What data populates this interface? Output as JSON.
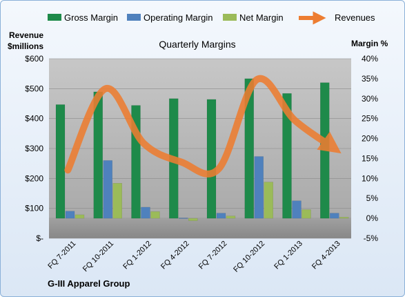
{
  "chart_data": {
    "type": "bar",
    "title": "Quarterly Margins",
    "categories": [
      "FQ 7-2011",
      "FQ 10-2011",
      "FQ 1-2012",
      "FQ 4-2012",
      "FQ 7-2012",
      "FQ 10-2012",
      "FQ 1-2013",
      "FQ 4-2013"
    ],
    "series": [
      {
        "name": "Gross Margin",
        "type": "bar",
        "axis": "right",
        "color": "#1e8a4a",
        "values": [
          28.5,
          31.7,
          28.3,
          30.0,
          29.8,
          35.0,
          31.3,
          34.0
        ]
      },
      {
        "name": "Operating Margin",
        "type": "bar",
        "axis": "right",
        "color": "#4f81bd",
        "values": [
          1.8,
          14.5,
          2.8,
          0.1,
          1.3,
          15.5,
          4.4,
          1.3
        ]
      },
      {
        "name": "Net Margin",
        "type": "bar",
        "axis": "right",
        "color": "#9bbb59",
        "values": [
          0.9,
          8.8,
          1.7,
          -0.6,
          0.6,
          9.1,
          2.2,
          0.3
        ]
      },
      {
        "name": "Revenues",
        "type": "line",
        "axis": "left",
        "color": "#ed7d31",
        "values": [
          228,
          500,
          318,
          255,
          233,
          530,
          395,
          305
        ]
      }
    ],
    "left_axis": {
      "label_line1": "Revenue",
      "label_line2": "$millions",
      "min": 0,
      "max": 600,
      "ticks": [
        "$-",
        "$100",
        "$200",
        "$300",
        "$400",
        "$500",
        "$600"
      ]
    },
    "right_axis": {
      "label": "Margin %",
      "min": -5,
      "max": 40,
      "ticks": [
        "-5%",
        "0%",
        "5%",
        "10%",
        "15%",
        "20%",
        "25%",
        "30%",
        "35%",
        "40%"
      ]
    },
    "grid": true,
    "legend_position": "top"
  },
  "footer": "G-III Apparel Group"
}
